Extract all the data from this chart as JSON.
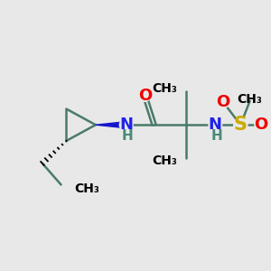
{
  "background_color": "#e8e8e8",
  "bond_color": "#4a7a6a",
  "bond_width": 1.8,
  "N_color": "#2020ee",
  "O_color": "#ee0000",
  "S_color": "#ccaa00",
  "H_color": "#4a8a7a",
  "text_fontsize": 13,
  "small_fontsize": 11,
  "figsize": [
    3.0,
    3.0
  ],
  "dpi": 100,
  "xlim": [
    0,
    10
  ],
  "ylim": [
    0,
    10
  ]
}
